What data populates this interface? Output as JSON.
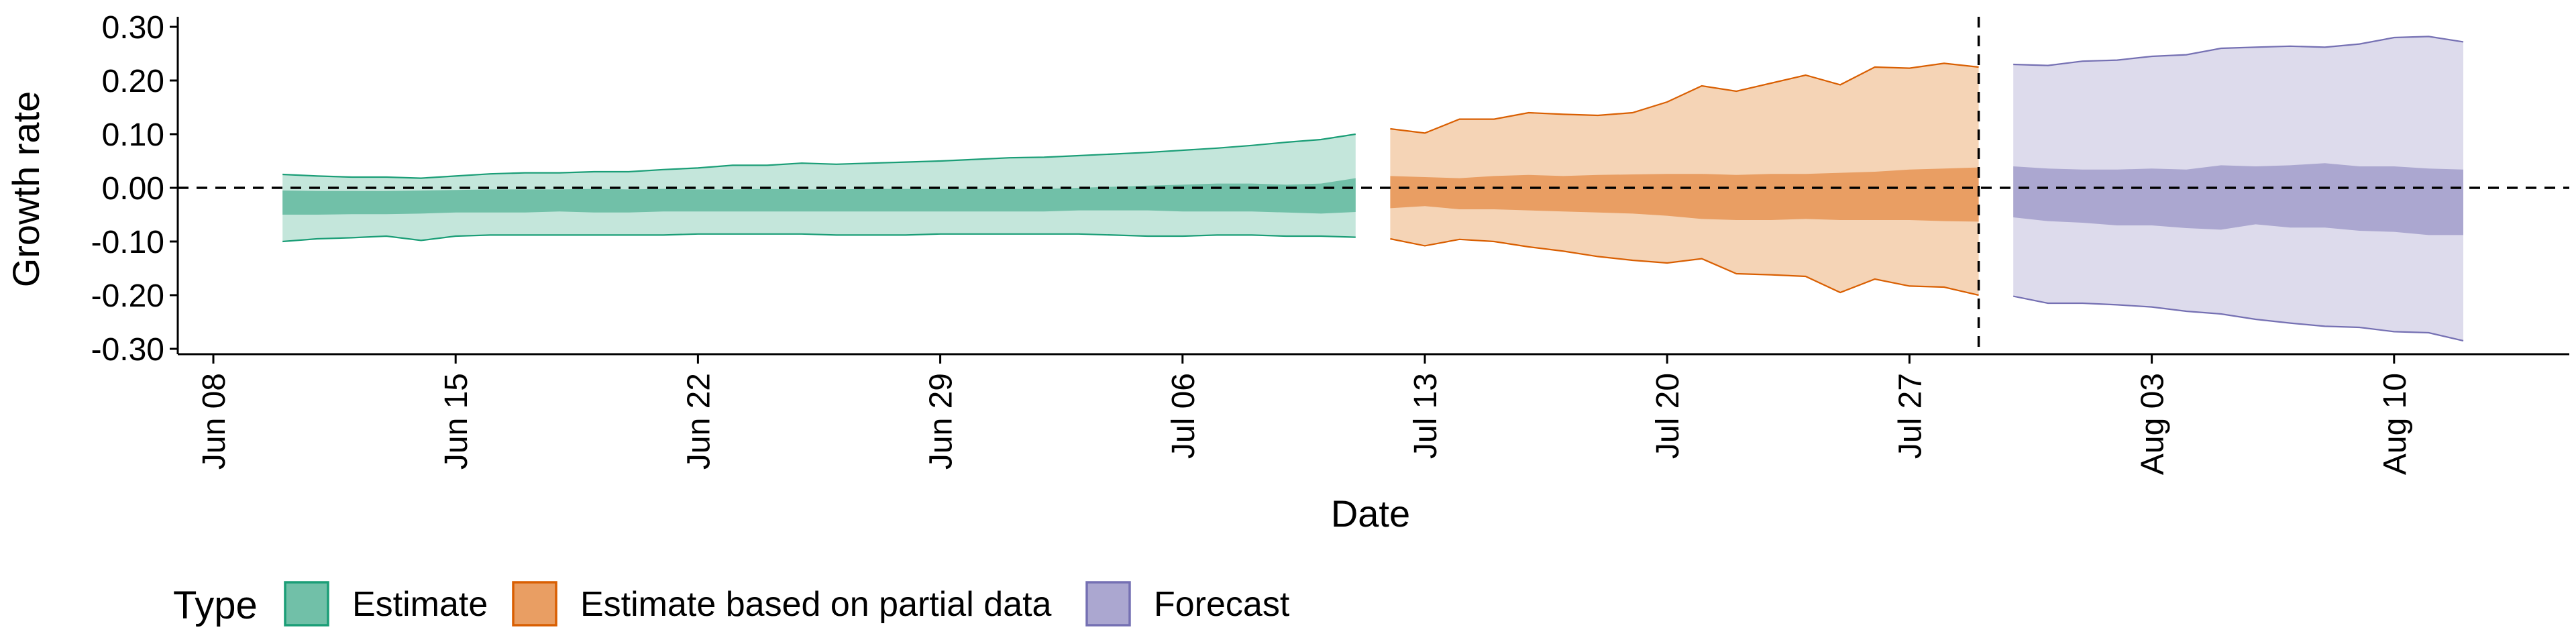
{
  "chart_data": {
    "type": "area",
    "xlabel": "Date",
    "ylabel": "Growth rate",
    "ylim": [
      -0.3,
      0.3
    ],
    "y_ticks": [
      "0.30",
      "0.20",
      "0.10",
      "0.00",
      "-0.10",
      "-0.20",
      "-0.30"
    ],
    "x_ticks": [
      {
        "date": "2020-06-08",
        "label": "Jun 08"
      },
      {
        "date": "2020-06-15",
        "label": "Jun 15"
      },
      {
        "date": "2020-06-22",
        "label": "Jun 22"
      },
      {
        "date": "2020-06-29",
        "label": "Jun 29"
      },
      {
        "date": "2020-07-06",
        "label": "Jul 06"
      },
      {
        "date": "2020-07-13",
        "label": "Jul 13"
      },
      {
        "date": "2020-07-20",
        "label": "Jul 20"
      },
      {
        "date": "2020-07-27",
        "label": "Jul 27"
      },
      {
        "date": "2020-08-03",
        "label": "Aug 03"
      },
      {
        "date": "2020-08-10",
        "label": "Aug 10"
      }
    ],
    "xlim": [
      "2020-06-08",
      "2020-08-15"
    ],
    "reference_lines": {
      "y_zero": 0.0,
      "vertical_date": "2020-07-29"
    },
    "legend": {
      "title": "Type",
      "position": "bottom-left",
      "items": [
        {
          "label": "Estimate",
          "fill": "#71c0a8",
          "stroke": "#1b9e77"
        },
        {
          "label": "Estimate based on partial data",
          "fill": "#e99e63",
          "stroke": "#d95f02"
        },
        {
          "label": "Forecast",
          "fill": "#aba7d0",
          "stroke": "#7570b3"
        }
      ]
    },
    "series": [
      {
        "name": "Estimate",
        "outer_fill": "#c4e6db",
        "inner_fill": "#71c0a8",
        "stroke": "#1b9e77",
        "x": [
          "2020-06-10",
          "2020-06-11",
          "2020-06-12",
          "2020-06-13",
          "2020-06-14",
          "2020-06-15",
          "2020-06-16",
          "2020-06-17",
          "2020-06-18",
          "2020-06-19",
          "2020-06-20",
          "2020-06-21",
          "2020-06-22",
          "2020-06-23",
          "2020-06-24",
          "2020-06-25",
          "2020-06-26",
          "2020-06-27",
          "2020-06-28",
          "2020-06-29",
          "2020-06-30",
          "2020-07-01",
          "2020-07-02",
          "2020-07-03",
          "2020-07-04",
          "2020-07-05",
          "2020-07-06",
          "2020-07-07",
          "2020-07-08",
          "2020-07-09",
          "2020-07-10",
          "2020-07-11"
        ],
        "outer_upper": [
          0.025,
          0.022,
          0.02,
          0.02,
          0.018,
          0.022,
          0.026,
          0.028,
          0.028,
          0.03,
          0.03,
          0.034,
          0.037,
          0.042,
          0.042,
          0.046,
          0.044,
          0.046,
          0.048,
          0.05,
          0.053,
          0.056,
          0.057,
          0.06,
          0.063,
          0.066,
          0.07,
          0.074,
          0.079,
          0.085,
          0.09,
          0.1
        ],
        "outer_lower": [
          -0.1,
          -0.095,
          -0.093,
          -0.09,
          -0.098,
          -0.09,
          -0.088,
          -0.088,
          -0.088,
          -0.088,
          -0.088,
          -0.088,
          -0.086,
          -0.086,
          -0.086,
          -0.086,
          -0.088,
          -0.088,
          -0.088,
          -0.086,
          -0.086,
          -0.086,
          -0.086,
          -0.086,
          -0.088,
          -0.09,
          -0.09,
          -0.088,
          -0.088,
          -0.09,
          -0.09,
          -0.092
        ],
        "inner_upper": [
          -0.005,
          -0.006,
          -0.006,
          -0.006,
          -0.005,
          -0.004,
          -0.003,
          -0.003,
          -0.003,
          -0.002,
          -0.003,
          -0.002,
          -0.003,
          -0.003,
          -0.002,
          -0.003,
          -0.003,
          -0.002,
          -0.002,
          -0.002,
          -0.002,
          -0.002,
          -0.002,
          0.0,
          0.002,
          0.004,
          0.006,
          0.008,
          0.008,
          0.006,
          0.008,
          0.018
        ],
        "inner_lower": [
          -0.05,
          -0.05,
          -0.049,
          -0.049,
          -0.048,
          -0.046,
          -0.046,
          -0.046,
          -0.044,
          -0.046,
          -0.046,
          -0.044,
          -0.044,
          -0.044,
          -0.044,
          -0.044,
          -0.044,
          -0.044,
          -0.044,
          -0.044,
          -0.044,
          -0.044,
          -0.044,
          -0.042,
          -0.042,
          -0.042,
          -0.044,
          -0.044,
          -0.044,
          -0.046,
          -0.048,
          -0.045
        ]
      },
      {
        "name": "Estimate based on partial data",
        "outer_fill": "#f5d4b6",
        "inner_fill": "#e99e63",
        "stroke": "#d95f02",
        "x": [
          "2020-07-12",
          "2020-07-13",
          "2020-07-14",
          "2020-07-15",
          "2020-07-16",
          "2020-07-17",
          "2020-07-18",
          "2020-07-19",
          "2020-07-20",
          "2020-07-21",
          "2020-07-22",
          "2020-07-23",
          "2020-07-24",
          "2020-07-25",
          "2020-07-26",
          "2020-07-27",
          "2020-07-28",
          "2020-07-29"
        ],
        "outer_upper": [
          0.11,
          0.102,
          0.128,
          0.128,
          0.14,
          0.137,
          0.135,
          0.14,
          0.16,
          0.19,
          0.18,
          0.195,
          0.21,
          0.192,
          0.225,
          0.223,
          0.232,
          0.225
        ],
        "outer_lower": [
          -0.095,
          -0.108,
          -0.096,
          -0.1,
          -0.11,
          -0.118,
          -0.128,
          -0.135,
          -0.14,
          -0.132,
          -0.16,
          -0.162,
          -0.165,
          -0.195,
          -0.17,
          -0.183,
          -0.185,
          -0.2
        ],
        "inner_upper": [
          0.022,
          0.02,
          0.018,
          0.022,
          0.024,
          0.022,
          0.024,
          0.025,
          0.026,
          0.026,
          0.024,
          0.026,
          0.026,
          0.028,
          0.03,
          0.034,
          0.036,
          0.038
        ],
        "inner_lower": [
          -0.038,
          -0.034,
          -0.04,
          -0.04,
          -0.042,
          -0.044,
          -0.046,
          -0.048,
          -0.052,
          -0.058,
          -0.06,
          -0.06,
          -0.058,
          -0.06,
          -0.06,
          -0.06,
          -0.062,
          -0.063
        ]
      },
      {
        "name": "Forecast",
        "outer_fill": "#dddbec",
        "inner_fill": "#aba7d0",
        "stroke": "#7570b3",
        "x": [
          "2020-07-30",
          "2020-07-31",
          "2020-08-01",
          "2020-08-02",
          "2020-08-03",
          "2020-08-04",
          "2020-08-05",
          "2020-08-06",
          "2020-08-07",
          "2020-08-08",
          "2020-08-09",
          "2020-08-10",
          "2020-08-11",
          "2020-08-12"
        ],
        "outer_upper": [
          0.23,
          0.228,
          0.236,
          0.238,
          0.245,
          0.248,
          0.26,
          0.262,
          0.264,
          0.262,
          0.268,
          0.28,
          0.282,
          0.272
        ],
        "outer_lower": [
          -0.202,
          -0.215,
          -0.215,
          -0.218,
          -0.222,
          -0.23,
          -0.235,
          -0.245,
          -0.252,
          -0.258,
          -0.26,
          -0.268,
          -0.27,
          -0.285
        ],
        "inner_upper": [
          0.04,
          0.036,
          0.034,
          0.034,
          0.036,
          0.034,
          0.042,
          0.04,
          0.042,
          0.046,
          0.04,
          0.04,
          0.036,
          0.034
        ],
        "inner_lower": [
          -0.055,
          -0.062,
          -0.065,
          -0.07,
          -0.07,
          -0.075,
          -0.078,
          -0.068,
          -0.074,
          -0.074,
          -0.08,
          -0.082,
          -0.088,
          -0.088
        ]
      }
    ]
  }
}
